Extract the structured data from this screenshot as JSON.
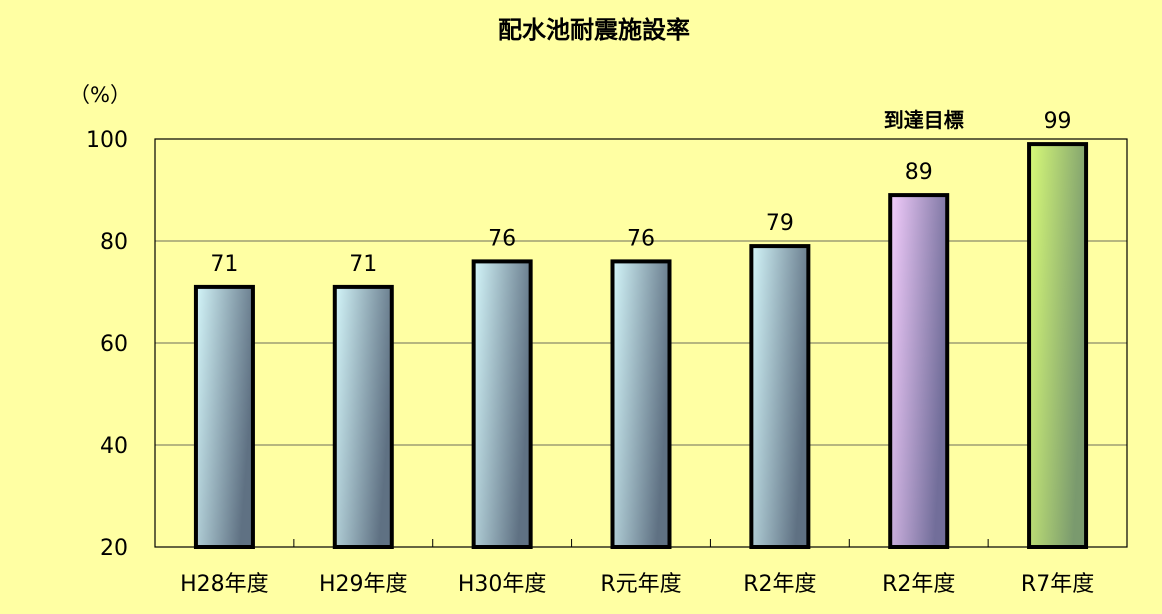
{
  "chart_data": {
    "type": "bar",
    "title": "配水池耐震施設率",
    "ylabel": "（%）",
    "xlabel": "",
    "ylim": [
      20,
      100
    ],
    "yticks": [
      20,
      40,
      60,
      80,
      100
    ],
    "grid": true,
    "categories": [
      "H28年度",
      "H29年度",
      "H30年度",
      "R元年度",
      "R2年度",
      "R2年度",
      "R7年度"
    ],
    "values": [
      71,
      71,
      76,
      76,
      79,
      89,
      99
    ],
    "data_labels": [
      "71",
      "71",
      "76",
      "76",
      "79",
      "89",
      "99"
    ],
    "annotations": [
      {
        "category_index": 5,
        "text": "到達目標"
      }
    ],
    "bar_colors": [
      [
        "#d4f6fa",
        "#5f7183"
      ],
      [
        "#d4f6fa",
        "#5f7183"
      ],
      [
        "#d4f6fa",
        "#5f7183"
      ],
      [
        "#d4f6fa",
        "#5f7183"
      ],
      [
        "#d4f6fa",
        "#5f7183"
      ],
      [
        "#f3cdfc",
        "#726e9a"
      ],
      [
        "#d8fb78",
        "#7a9a6e"
      ]
    ],
    "background": "#ffffa3"
  }
}
